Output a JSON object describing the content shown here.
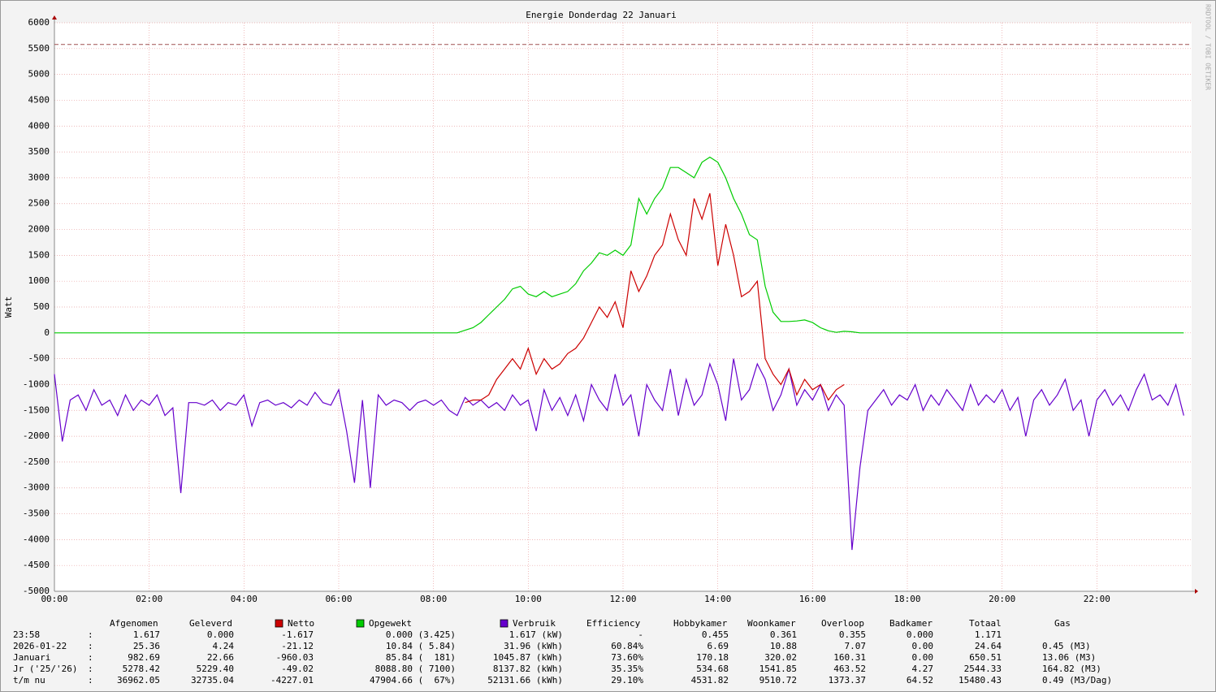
{
  "chart_data": {
    "type": "line",
    "title": "Energie Donderdag 22 Januari",
    "y_label": "Watt",
    "watermark": "RRDTOOL / TOBI OETIKER",
    "xlim": [
      0,
      1440
    ],
    "xticks": [
      {
        "value": 0,
        "label": "00:00"
      },
      {
        "value": 120,
        "label": "02:00"
      },
      {
        "value": 240,
        "label": "04:00"
      },
      {
        "value": 360,
        "label": "06:00"
      },
      {
        "value": 480,
        "label": "08:00"
      },
      {
        "value": 600,
        "label": "10:00"
      },
      {
        "value": 720,
        "label": "12:00"
      },
      {
        "value": 840,
        "label": "14:00"
      },
      {
        "value": 960,
        "label": "16:00"
      },
      {
        "value": 1080,
        "label": "18:00"
      },
      {
        "value": 1200,
        "label": "20:00"
      },
      {
        "value": 1320,
        "label": "22:00"
      }
    ],
    "ylim": [
      -5000,
      6000
    ],
    "yticks": [
      -5000,
      -4500,
      -4000,
      -3500,
      -3000,
      -2500,
      -2000,
      -1500,
      -1000,
      -500,
      0,
      500,
      1000,
      1500,
      2000,
      2500,
      3000,
      3500,
      4000,
      4500,
      5000,
      5500,
      6000
    ],
    "grid": true,
    "hrule": 5580,
    "x": [
      0,
      10,
      20,
      30,
      40,
      50,
      60,
      70,
      80,
      90,
      100,
      110,
      120,
      130,
      140,
      150,
      160,
      170,
      180,
      190,
      200,
      210,
      220,
      230,
      240,
      250,
      260,
      270,
      280,
      290,
      300,
      310,
      320,
      330,
      340,
      350,
      360,
      370,
      380,
      390,
      400,
      410,
      420,
      430,
      440,
      450,
      460,
      470,
      480,
      490,
      500,
      510,
      520,
      530,
      540,
      550,
      560,
      570,
      580,
      590,
      600,
      610,
      620,
      630,
      640,
      650,
      660,
      670,
      680,
      690,
      700,
      710,
      720,
      730,
      740,
      750,
      760,
      770,
      780,
      790,
      800,
      810,
      820,
      830,
      840,
      850,
      860,
      870,
      880,
      890,
      900,
      910,
      920,
      930,
      940,
      950,
      960,
      970,
      980,
      990,
      1000,
      1010,
      1020,
      1030,
      1040,
      1050,
      1060,
      1070,
      1080,
      1090,
      1100,
      1110,
      1120,
      1130,
      1140,
      1150,
      1160,
      1170,
      1180,
      1190,
      1200,
      1210,
      1220,
      1230,
      1240,
      1250,
      1260,
      1270,
      1280,
      1290,
      1300,
      1310,
      1320,
      1330,
      1340,
      1350,
      1360,
      1370,
      1380,
      1390,
      1400,
      1410,
      1420,
      1430
    ],
    "series": [
      {
        "name": "Netto",
        "color": "#cc0000",
        "values": [
          null,
          null,
          null,
          null,
          null,
          null,
          null,
          null,
          null,
          null,
          null,
          null,
          null,
          null,
          null,
          null,
          null,
          null,
          null,
          null,
          null,
          null,
          null,
          null,
          null,
          null,
          null,
          null,
          null,
          null,
          null,
          null,
          null,
          null,
          null,
          null,
          null,
          null,
          null,
          null,
          null,
          null,
          null,
          null,
          null,
          null,
          null,
          null,
          null,
          null,
          null,
          null,
          -1350,
          -1300,
          -1300,
          -1200,
          -900,
          -700,
          -500,
          -700,
          -300,
          -800,
          -500,
          -700,
          -600,
          -400,
          -300,
          -100,
          200,
          500,
          300,
          600,
          100,
          1200,
          800,
          1100,
          1500,
          1700,
          2300,
          1800,
          1500,
          2600,
          2200,
          2700,
          1300,
          2100,
          1500,
          700,
          800,
          1000,
          -500,
          -800,
          -1000,
          -700,
          -1200,
          -900,
          -1100,
          -1000,
          -1300,
          -1100,
          -1000,
          null,
          null,
          null,
          null,
          null,
          null,
          null,
          null,
          null,
          null,
          null,
          null,
          null,
          null,
          null,
          null,
          null,
          null,
          null,
          null,
          null,
          null,
          null,
          null,
          null,
          null,
          null,
          null,
          null,
          null,
          null,
          null,
          null,
          null,
          null,
          null,
          null,
          null,
          null,
          null,
          null,
          null,
          null
        ]
      },
      {
        "name": "Opgewekt",
        "color": "#00cc00",
        "values": [
          0,
          0,
          0,
          0,
          0,
          0,
          0,
          0,
          0,
          0,
          0,
          0,
          0,
          0,
          0,
          0,
          0,
          0,
          0,
          0,
          0,
          0,
          0,
          0,
          0,
          0,
          0,
          0,
          0,
          0,
          0,
          0,
          0,
          0,
          0,
          0,
          0,
          0,
          0,
          0,
          0,
          0,
          0,
          0,
          0,
          0,
          0,
          0,
          0,
          0,
          0,
          0,
          50,
          100,
          200,
          350,
          500,
          650,
          850,
          900,
          750,
          700,
          800,
          700,
          750,
          800,
          950,
          1200,
          1350,
          1550,
          1500,
          1600,
          1500,
          1700,
          2600,
          2300,
          2600,
          2800,
          3200,
          3200,
          3100,
          3000,
          3300,
          3400,
          3300,
          3000,
          2600,
          2300,
          1900,
          1800,
          900,
          400,
          220,
          220,
          230,
          250,
          200,
          100,
          40,
          10,
          30,
          20,
          0,
          0,
          0,
          0,
          0,
          0,
          0,
          0,
          0,
          0,
          0,
          0,
          0,
          0,
          0,
          0,
          0,
          0,
          0,
          0,
          0,
          0,
          0,
          0,
          0,
          0,
          0,
          0,
          0,
          0,
          0,
          0,
          0,
          0,
          0,
          0,
          0,
          0,
          0,
          0,
          0,
          0
        ]
      },
      {
        "name": "Verbruik",
        "color": "#6600cc",
        "values": [
          -800,
          -2100,
          -1300,
          -1200,
          -1500,
          -1100,
          -1400,
          -1300,
          -1600,
          -1200,
          -1500,
          -1300,
          -1400,
          -1200,
          -1600,
          -1450,
          -3100,
          -1350,
          -1350,
          -1400,
          -1300,
          -1500,
          -1350,
          -1400,
          -1200,
          -1800,
          -1350,
          -1300,
          -1400,
          -1350,
          -1450,
          -1300,
          -1400,
          -1150,
          -1350,
          -1400,
          -1100,
          -1900,
          -2900,
          -1300,
          -3000,
          -1200,
          -1400,
          -1300,
          -1350,
          -1500,
          -1350,
          -1300,
          -1400,
          -1300,
          -1500,
          -1600,
          -1250,
          -1400,
          -1300,
          -1450,
          -1350,
          -1500,
          -1200,
          -1400,
          -1300,
          -1900,
          -1100,
          -1500,
          -1250,
          -1600,
          -1200,
          -1700,
          -1000,
          -1300,
          -1500,
          -800,
          -1400,
          -1200,
          -2000,
          -1000,
          -1300,
          -1500,
          -700,
          -1600,
          -900,
          -1400,
          -1200,
          -600,
          -1000,
          -1700,
          -500,
          -1300,
          -1100,
          -600,
          -900,
          -1500,
          -1200,
          -700,
          -1400,
          -1100,
          -1300,
          -1000,
          -1500,
          -1200,
          -1400,
          -4200,
          -2600,
          -1500,
          -1300,
          -1100,
          -1400,
          -1200,
          -1300,
          -1000,
          -1500,
          -1200,
          -1400,
          -1100,
          -1300,
          -1500,
          -1000,
          -1400,
          -1200,
          -1350,
          -1100,
          -1500,
          -1250,
          -2000,
          -1300,
          -1100,
          -1400,
          -1200,
          -900,
          -1500,
          -1300,
          -2000,
          -1300,
          -1100,
          -1400,
          -1200,
          -1500,
          -1100,
          -800,
          -1300,
          -1200,
          -1400,
          -1000,
          -1600
        ]
      }
    ]
  },
  "table": {
    "header": [
      "Afgenomen",
      "Geleverd",
      "Efficiency",
      "Hobbykamer",
      "Woonkamer",
      "Overloop",
      "Badkamer",
      "Totaal",
      "Gas"
    ],
    "sep": ":",
    "rows": [
      {
        "label": "23:58",
        "cells": [
          "1.617",
          "0.000",
          "-1.617",
          "0.000 (3.425)",
          "1.617 (kW)",
          "-",
          "0.455",
          "0.361",
          "0.355",
          "0.000",
          "1.171"
        ]
      },
      {
        "label": "2026-01-22",
        "cells": [
          "25.36",
          "4.24",
          "-21.12",
          "10.84 ( 5.84)",
          "31.96 (kWh)",
          "60.84%",
          "6.69",
          "10.88",
          "7.07",
          "0.00",
          "24.64",
          "0.45 (M3)"
        ]
      },
      {
        "label": "Januari",
        "cells": [
          "982.69",
          "22.66",
          "-960.03",
          "85.84 (  181)",
          "1045.87 (kWh)",
          "73.60%",
          "170.18",
          "320.02",
          "160.31",
          "0.00",
          "650.51",
          "13.06 (M3)"
        ]
      },
      {
        "label": "Jr ('25/'26)",
        "cells": [
          "5278.42",
          "5229.40",
          "-49.02",
          "8088.80 ( 7100)",
          "8137.82 (kWh)",
          "35.35%",
          "534.68",
          "1541.85",
          "463.52",
          "4.27",
          "2544.33",
          "164.82 (M3)"
        ]
      },
      {
        "label": "t/m nu",
        "cells": [
          "36962.05",
          "32735.04",
          "-4227.01",
          "47904.66 (  67%)",
          "52131.66 (kWh)",
          "29.10%",
          "4531.82",
          "9510.72",
          "1373.37",
          "64.52",
          "15480.43",
          "0.49 (M3/Dag)"
        ]
      }
    ]
  }
}
